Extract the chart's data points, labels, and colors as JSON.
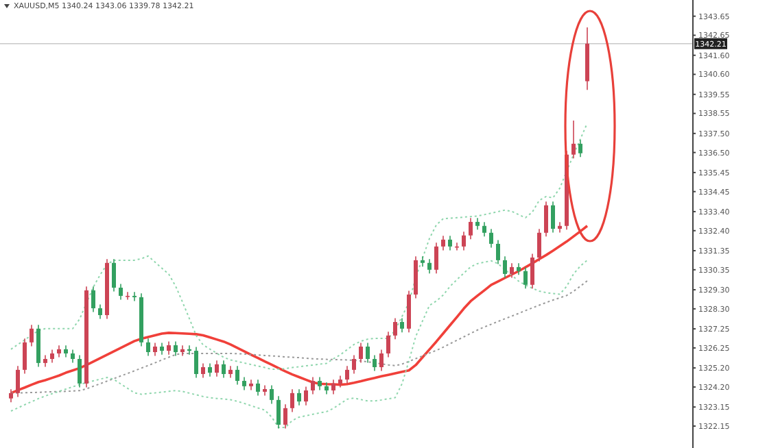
{
  "chart_data": {
    "type": "candlestick",
    "title": "XAUUSD,M5  1340.24 1343.06 1339.78 1342.21",
    "categories": [
      null,
      null,
      null,
      null,
      null,
      null,
      null,
      null,
      null,
      null,
      null,
      null,
      null,
      null,
      null,
      null,
      null,
      null,
      null,
      null,
      null,
      null,
      null,
      null,
      null,
      null,
      null,
      null,
      null,
      null,
      null,
      null,
      null,
      null,
      null,
      null,
      null,
      null,
      null,
      null,
      null,
      null,
      null,
      null,
      null,
      null,
      null,
      null,
      null,
      null,
      null,
      null,
      null,
      null,
      null,
      null,
      null,
      null,
      null,
      null,
      null,
      null,
      null,
      null,
      null,
      null,
      null,
      null,
      null,
      null,
      null,
      null,
      null,
      null,
      null,
      null,
      null,
      null,
      null,
      null,
      null,
      null,
      null,
      null,
      null
    ],
    "ohlc": [
      [
        1323.6,
        1324.08,
        1323.4,
        1323.88
      ],
      [
        1323.88,
        1325.3,
        1323.68,
        1325.1
      ],
      [
        1325.1,
        1326.74,
        1324.9,
        1326.54
      ],
      [
        1326.54,
        1327.46,
        1326.34,
        1327.26
      ],
      [
        1327.26,
        1327.46,
        1325.26,
        1325.46
      ],
      [
        1325.46,
        1325.87,
        1325.26,
        1325.67
      ],
      [
        1325.67,
        1326.16,
        1325.47,
        1325.96
      ],
      [
        1325.96,
        1326.38,
        1325.76,
        1326.18
      ],
      [
        1326.18,
        1326.38,
        1325.76,
        1325.96
      ],
      [
        1325.96,
        1326.16,
        1325.47,
        1325.67
      ],
      [
        1325.67,
        1325.87,
        1324.18,
        1324.38
      ],
      [
        1324.38,
        1329.47,
        1324.18,
        1329.27
      ],
      [
        1329.27,
        1329.47,
        1328.13,
        1328.33
      ],
      [
        1328.33,
        1328.53,
        1327.77,
        1327.97
      ],
      [
        1327.97,
        1330.91,
        1327.77,
        1330.71
      ],
      [
        1330.71,
        1330.91,
        1329.21,
        1329.41
      ],
      [
        1329.41,
        1329.61,
        1328.78,
        1328.98
      ],
      [
        1328.98,
        1329.18,
        1328.78,
        1328.98
      ],
      [
        1328.98,
        1329.18,
        1328.71,
        1328.91
      ],
      [
        1328.91,
        1329.11,
        1326.34,
        1326.54
      ],
      [
        1326.54,
        1326.74,
        1325.83,
        1326.03
      ],
      [
        1326.03,
        1326.52,
        1325.83,
        1326.32
      ],
      [
        1326.32,
        1326.52,
        1325.9,
        1326.1
      ],
      [
        1326.1,
        1326.59,
        1325.9,
        1326.39
      ],
      [
        1326.39,
        1326.59,
        1325.83,
        1326.03
      ],
      [
        1326.03,
        1326.38,
        1325.83,
        1326.18
      ],
      [
        1326.18,
        1326.38,
        1325.9,
        1326.1
      ],
      [
        1326.1,
        1326.3,
        1324.68,
        1324.88
      ],
      [
        1324.88,
        1325.44,
        1324.68,
        1325.24
      ],
      [
        1325.24,
        1325.44,
        1324.75,
        1324.95
      ],
      [
        1324.95,
        1325.59,
        1324.75,
        1325.39
      ],
      [
        1325.39,
        1325.59,
        1324.68,
        1324.88
      ],
      [
        1324.88,
        1325.3,
        1324.68,
        1325.1
      ],
      [
        1325.1,
        1325.3,
        1324.32,
        1324.52
      ],
      [
        1324.52,
        1324.72,
        1324.04,
        1324.24
      ],
      [
        1324.24,
        1324.58,
        1324.04,
        1324.38
      ],
      [
        1324.38,
        1324.58,
        1323.75,
        1323.95
      ],
      [
        1323.95,
        1324.29,
        1323.75,
        1324.09
      ],
      [
        1324.09,
        1324.29,
        1323.32,
        1323.52
      ],
      [
        1323.52,
        1323.72,
        1322.02,
        1322.22
      ],
      [
        1322.22,
        1323.29,
        1322.02,
        1323.09
      ],
      [
        1323.09,
        1324.08,
        1322.89,
        1323.88
      ],
      [
        1323.88,
        1324.08,
        1323.24,
        1323.44
      ],
      [
        1323.44,
        1324.22,
        1323.24,
        1324.02
      ],
      [
        1324.02,
        1324.72,
        1323.82,
        1324.52
      ],
      [
        1324.52,
        1324.72,
        1324.04,
        1324.24
      ],
      [
        1324.24,
        1324.44,
        1323.82,
        1324.02
      ],
      [
        1324.02,
        1324.58,
        1323.82,
        1324.38
      ],
      [
        1324.38,
        1324.79,
        1324.18,
        1324.59
      ],
      [
        1324.59,
        1325.3,
        1324.39,
        1325.1
      ],
      [
        1325.1,
        1325.87,
        1324.9,
        1325.67
      ],
      [
        1325.67,
        1326.52,
        1325.47,
        1326.32
      ],
      [
        1326.32,
        1326.52,
        1325.47,
        1325.67
      ],
      [
        1325.67,
        1325.87,
        1325.04,
        1325.24
      ],
      [
        1325.24,
        1326.16,
        1325.04,
        1325.96
      ],
      [
        1325.96,
        1327.1,
        1325.76,
        1326.9
      ],
      [
        1326.9,
        1327.81,
        1326.7,
        1327.61
      ],
      [
        1327.61,
        1327.81,
        1327.06,
        1327.26
      ],
      [
        1327.26,
        1329.25,
        1327.06,
        1329.05
      ],
      [
        1329.05,
        1331.05,
        1328.85,
        1330.85
      ],
      [
        1330.85,
        1331.05,
        1330.51,
        1330.71
      ],
      [
        1330.71,
        1330.91,
        1330.15,
        1330.35
      ],
      [
        1330.35,
        1331.77,
        1330.15,
        1331.57
      ],
      [
        1331.57,
        1332.13,
        1331.37,
        1331.93
      ],
      [
        1331.93,
        1332.13,
        1331.37,
        1331.57
      ],
      [
        1331.57,
        1331.77,
        1331.37,
        1331.57
      ],
      [
        1331.57,
        1332.35,
        1331.37,
        1332.15
      ],
      [
        1332.15,
        1333.06,
        1331.95,
        1332.86
      ],
      [
        1332.86,
        1333.06,
        1332.45,
        1332.65
      ],
      [
        1332.65,
        1332.85,
        1332.09,
        1332.29
      ],
      [
        1332.29,
        1332.49,
        1331.51,
        1331.71
      ],
      [
        1331.71,
        1331.91,
        1330.65,
        1330.85
      ],
      [
        1330.85,
        1331.05,
        1329.93,
        1330.13
      ],
      [
        1330.13,
        1330.69,
        1329.93,
        1330.49
      ],
      [
        1330.49,
        1330.69,
        1330.08,
        1330.28
      ],
      [
        1330.28,
        1330.48,
        1329.36,
        1329.56
      ],
      [
        1329.56,
        1331.19,
        1329.36,
        1330.99
      ],
      [
        1330.99,
        1332.49,
        1330.79,
        1332.29
      ],
      [
        1332.29,
        1333.93,
        1332.09,
        1333.73
      ],
      [
        1333.73,
        1333.93,
        1332.3,
        1332.5
      ],
      [
        1332.5,
        1332.85,
        1332.3,
        1332.65
      ],
      [
        1332.65,
        1336.59,
        1332.45,
        1336.39
      ],
      [
        1336.39,
        1338.18,
        1336.19,
        1336.96
      ],
      [
        1336.96,
        1337.16,
        1336.26,
        1336.46
      ],
      [
        1340.24,
        1343.06,
        1339.78,
        1342.21
      ]
    ],
    "colors": [
      "#cc4455",
      "#cc4455",
      "#cc4455",
      "#cc4455",
      "#33a060",
      "#cc4455",
      "#cc4455",
      "#cc4455",
      "#33a060",
      "#33a060",
      "#33a060",
      "#cc4455",
      "#33a060",
      "#33a060",
      "#cc4455",
      "#33a060",
      "#33a060",
      "#cc4455",
      "#33a060",
      "#33a060",
      "#33a060",
      "#cc4455",
      "#33a060",
      "#cc4455",
      "#33a060",
      "#cc4455",
      "#33a060",
      "#33a060",
      "#cc4455",
      "#33a060",
      "#cc4455",
      "#33a060",
      "#cc4455",
      "#33a060",
      "#33a060",
      "#cc4455",
      "#33a060",
      "#cc4455",
      "#33a060",
      "#33a060",
      "#cc4455",
      "#cc4455",
      "#33a060",
      "#cc4455",
      "#cc4455",
      "#33a060",
      "#33a060",
      "#cc4455",
      "#cc4455",
      "#cc4455",
      "#cc4455",
      "#cc4455",
      "#33a060",
      "#33a060",
      "#cc4455",
      "#cc4455",
      "#cc4455",
      "#33a060",
      "#cc4455",
      "#cc4455",
      "#33a060",
      "#33a060",
      "#cc4455",
      "#cc4455",
      "#33a060",
      "#cc4455",
      "#cc4455",
      "#cc4455",
      "#33a060",
      "#33a060",
      "#33a060",
      "#33a060",
      "#33a060",
      "#cc4455",
      "#33a060",
      "#33a060",
      "#cc4455",
      "#cc4455",
      "#cc4455",
      "#33a060",
      "#cc4455",
      "#cc4455",
      "#cc4455",
      "#33a060",
      "#cc4455"
    ],
    "series": [
      {
        "type": "line",
        "color": "#f0403a",
        "line_style": "solid",
        "values": [
          1323.88,
          1324.03,
          1324.17,
          1324.32,
          1324.46,
          1324.56,
          1324.68,
          1324.8,
          1324.95,
          1325.07,
          1325.19,
          1325.35,
          1325.53,
          1325.71,
          1325.89,
          1326.07,
          1326.25,
          1326.43,
          1326.61,
          1326.73,
          1326.82,
          1326.91,
          1327.0,
          1327.04,
          1327.03,
          1327.01,
          1326.99,
          1326.97,
          1326.91,
          1326.8,
          1326.69,
          1326.58,
          1326.43,
          1326.25,
          1326.07,
          1325.89,
          1325.72,
          1325.54,
          1325.37,
          1325.19,
          1325.02,
          1324.86,
          1324.72,
          1324.58,
          1324.44,
          1324.37,
          1324.35,
          1324.34,
          1324.32,
          1324.35,
          1324.42,
          1324.5,
          1324.59,
          1324.67,
          1324.76,
          1324.84,
          1324.92,
          1325.0,
          1325.07,
          1325.35,
          1325.76,
          1326.17,
          1326.58,
          1327.01,
          1327.44,
          1327.87,
          1328.31,
          1328.7,
          1328.99,
          1329.27,
          1329.56,
          1329.74,
          1329.92,
          1330.1,
          1330.28,
          1330.48,
          1330.69,
          1330.91,
          1331.12,
          1331.35,
          1331.59,
          1331.83,
          1332.1,
          1332.37,
          1332.65
        ]
      },
      {
        "type": "line",
        "color": "#9a9a9a",
        "line_style": "dotted",
        "values": [
          1323.88,
          1323.89,
          1323.9,
          1323.91,
          1323.92,
          1323.94,
          1323.95,
          1323.96,
          1323.97,
          1323.99,
          1324.01,
          1324.1,
          1324.24,
          1324.37,
          1324.51,
          1324.64,
          1324.78,
          1324.91,
          1325.05,
          1325.19,
          1325.33,
          1325.47,
          1325.62,
          1325.76,
          1325.9,
          1325.96,
          1325.96,
          1325.96,
          1325.96,
          1325.96,
          1325.96,
          1325.96,
          1325.96,
          1325.95,
          1325.93,
          1325.9,
          1325.88,
          1325.85,
          1325.83,
          1325.81,
          1325.78,
          1325.76,
          1325.74,
          1325.71,
          1325.68,
          1325.67,
          1325.65,
          1325.64,
          1325.63,
          1325.62,
          1325.6,
          1325.57,
          1325.52,
          1325.47,
          1325.41,
          1325.36,
          1325.32,
          1325.4,
          1325.54,
          1325.69,
          1325.83,
          1325.98,
          1326.12,
          1326.29,
          1326.47,
          1326.65,
          1326.83,
          1327.01,
          1327.19,
          1327.35,
          1327.49,
          1327.64,
          1327.78,
          1327.92,
          1328.06,
          1328.21,
          1328.35,
          1328.49,
          1328.63,
          1328.76,
          1328.88,
          1329.0,
          1329.22,
          1329.49,
          1329.77
        ]
      },
      {
        "type": "line",
        "color": "#8fd6ad",
        "line_style": "dotted",
        "values": [
          1326.18,
          1326.43,
          1326.67,
          1326.92,
          1327.16,
          1327.26,
          1327.26,
          1327.26,
          1327.26,
          1327.26,
          1327.76,
          1328.6,
          1329.44,
          1330.09,
          1330.63,
          1330.85,
          1330.85,
          1330.85,
          1330.85,
          1330.93,
          1331.07,
          1330.75,
          1330.43,
          1330.12,
          1329.49,
          1328.66,
          1327.79,
          1326.9,
          1326.41,
          1326.19,
          1325.97,
          1325.76,
          1325.62,
          1325.54,
          1325.46,
          1325.38,
          1325.3,
          1325.22,
          1325.13,
          1325.13,
          1325.17,
          1325.22,
          1325.26,
          1325.31,
          1325.35,
          1325.4,
          1325.44,
          1325.68,
          1325.89,
          1326.16,
          1326.43,
          1326.6,
          1326.71,
          1326.75,
          1326.75,
          1326.75,
          1327.18,
          1327.9,
          1328.62,
          1329.94,
          1330.97,
          1331.99,
          1332.7,
          1333.03,
          1333.05,
          1333.08,
          1333.11,
          1333.14,
          1333.17,
          1333.24,
          1333.32,
          1333.4,
          1333.48,
          1333.41,
          1333.24,
          1333.08,
          1333.38,
          1333.99,
          1334.19,
          1334.12,
          1334.63,
          1335.52,
          1336.38,
          1337.21,
          1338.04
        ]
      },
      {
        "type": "line",
        "color": "#8fd6ad",
        "line_style": "dotted",
        "values": [
          1322.94,
          1323.1,
          1323.27,
          1323.43,
          1323.59,
          1323.73,
          1323.85,
          1323.97,
          1324.09,
          1324.21,
          1324.33,
          1324.43,
          1324.52,
          1324.61,
          1324.7,
          1324.6,
          1324.36,
          1324.13,
          1323.89,
          1323.82,
          1323.86,
          1323.89,
          1323.93,
          1323.97,
          1324.01,
          1323.97,
          1323.88,
          1323.79,
          1323.7,
          1323.64,
          1323.6,
          1323.57,
          1323.53,
          1323.45,
          1323.34,
          1323.22,
          1323.1,
          1322.99,
          1322.62,
          1322.08,
          1322.08,
          1322.44,
          1322.62,
          1322.69,
          1322.77,
          1322.84,
          1322.91,
          1323.08,
          1323.32,
          1323.56,
          1323.62,
          1323.54,
          1323.47,
          1323.47,
          1323.52,
          1323.58,
          1323.64,
          1324.37,
          1325.56,
          1326.85,
          1327.67,
          1328.48,
          1328.71,
          1329.02,
          1329.48,
          1329.83,
          1330.17,
          1330.5,
          1330.67,
          1330.75,
          1330.82,
          1330.67,
          1330.36,
          1330.06,
          1329.75,
          1329.55,
          1329.38,
          1329.23,
          1329.15,
          1329.1,
          1329.07,
          1329.48,
          1330.13,
          1330.55,
          1330.85
        ]
      }
    ],
    "ylim": [
      1321.0,
      1344.5
    ],
    "yticks": [
      {
        "value": 1343.65,
        "label": "1343.65"
      },
      {
        "value": 1342.65,
        "label": "1342.65"
      },
      {
        "value": 1341.6,
        "label": "1341.60"
      },
      {
        "value": 1340.6,
        "label": "1340.60"
      },
      {
        "value": 1339.55,
        "label": "1339.55"
      },
      {
        "value": 1338.55,
        "label": "1338.55"
      },
      {
        "value": 1337.5,
        "label": "1337.50"
      },
      {
        "value": 1336.5,
        "label": "1336.50"
      },
      {
        "value": 1335.45,
        "label": "1335.45"
      },
      {
        "value": 1334.45,
        "label": "1334.45"
      },
      {
        "value": 1333.4,
        "label": "1333.40"
      },
      {
        "value": 1332.4,
        "label": "1332.40"
      },
      {
        "value": 1331.35,
        "label": "1331.35"
      },
      {
        "value": 1330.35,
        "label": "1330.35"
      },
      {
        "value": 1329.3,
        "label": "1329.30"
      },
      {
        "value": 1328.3,
        "label": "1328.30"
      },
      {
        "value": 1327.25,
        "label": "1327.25"
      },
      {
        "value": 1326.25,
        "label": "1326.25"
      },
      {
        "value": 1325.2,
        "label": "1325.20"
      },
      {
        "value": 1324.2,
        "label": "1324.20"
      },
      {
        "value": 1323.15,
        "label": "1323.15"
      },
      {
        "value": 1322.15,
        "label": "1322.15"
      }
    ],
    "ref_lines": [
      {
        "axis": "y",
        "value": 1342.21,
        "label": "1342.21",
        "color": "#c8c8c8"
      }
    ],
    "tick_labels": "y",
    "marker": "none"
  }
}
